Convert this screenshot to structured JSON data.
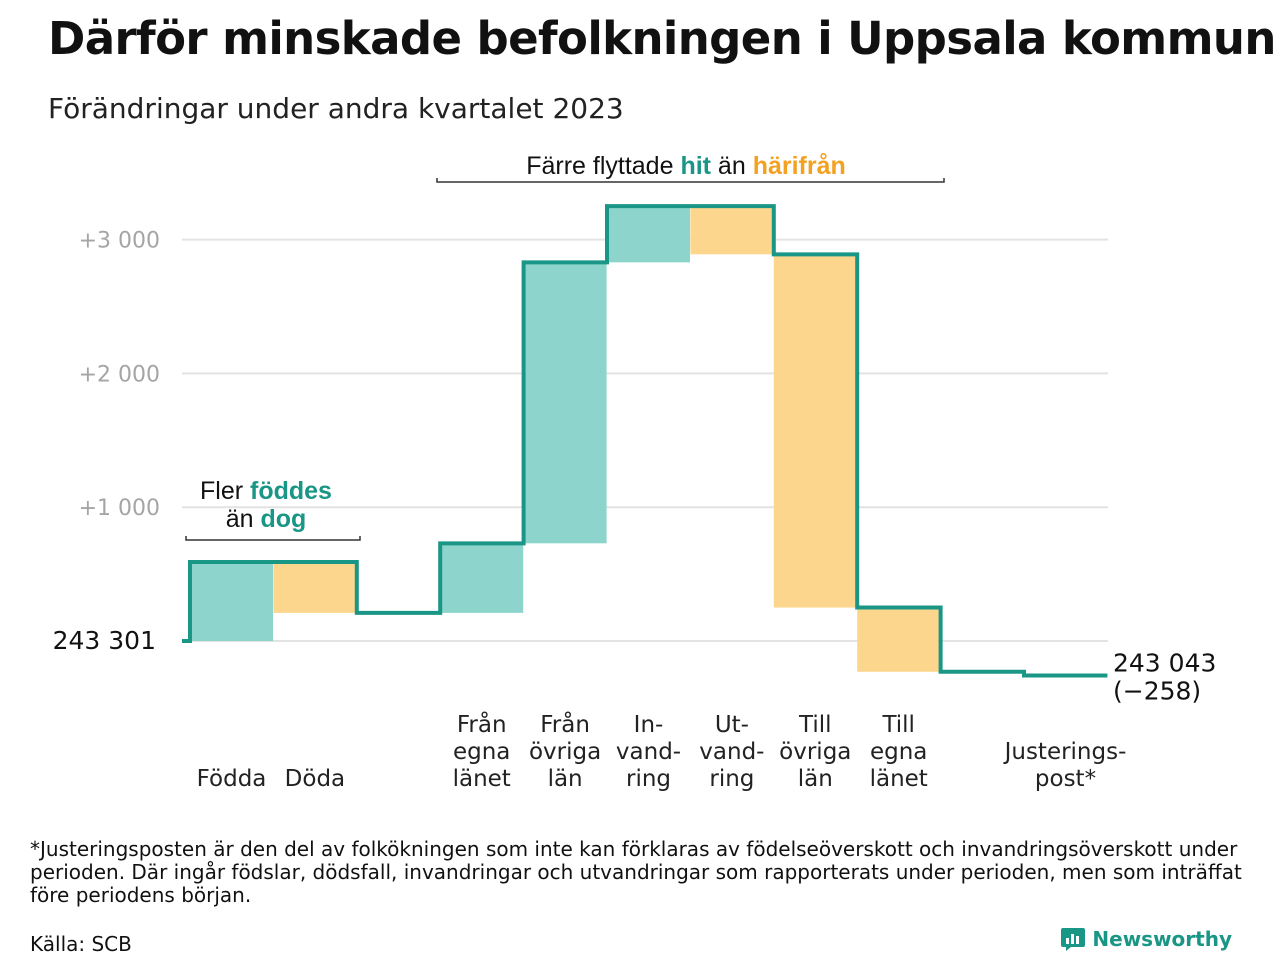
{
  "title": "Därför minskade befolkningen i Uppsala kommun",
  "subtitle": "Förändringar under andra kvartalet 2023",
  "footnote": "*Justeringsposten är den del av folkökningen som inte kan förklaras av födelseöverskott och invandringsöverskott under perioden. Där ingår födslar, dödsfall, invandringar och utvandringar som rapporterats under perioden, men som inträffat före periodens början.",
  "source": "Källa: SCB",
  "brand": "Newsworthy",
  "colors": {
    "increase": "#8dd5cc",
    "decrease": "#fcd68c",
    "line": "#1a9686",
    "increase_text": "#1a9686",
    "decrease_text": "#f3a122"
  },
  "chart_data": {
    "type": "waterfall",
    "start_value": 243301,
    "start_label": "243   301",
    "end_value": 243043,
    "end_label": "243 043",
    "end_change_label": "(−258)",
    "ylim": [
      -350,
      3350
    ],
    "yticks": [
      {
        "value": 1000,
        "label": "+1   000"
      },
      {
        "value": 2000,
        "label": "+2   000"
      },
      {
        "value": 3000,
        "label": "+3   000"
      }
    ],
    "steps": [
      {
        "label": [
          "Födda"
        ],
        "change": 590,
        "kind": "increase"
      },
      {
        "label": [
          "Döda"
        ],
        "change": -380,
        "kind": "decrease"
      },
      {
        "label": [
          ""
        ],
        "change": 0,
        "kind": "gap"
      },
      {
        "label": [
          "Från",
          "egna",
          "länet"
        ],
        "change": 520,
        "kind": "increase"
      },
      {
        "label": [
          "Från",
          "övriga",
          "län"
        ],
        "change": 2100,
        "kind": "increase"
      },
      {
        "label": [
          "In-",
          "vand-",
          "ring"
        ],
        "change": 420,
        "kind": "increase"
      },
      {
        "label": [
          "Ut-",
          "vand-",
          "ring"
        ],
        "change": -360,
        "kind": "decrease"
      },
      {
        "label": [
          "Till",
          "övriga",
          "län"
        ],
        "change": -2640,
        "kind": "decrease"
      },
      {
        "label": [
          "Till",
          "egna",
          "länet"
        ],
        "change": -480,
        "kind": "decrease"
      },
      {
        "label": [
          ""
        ],
        "change": 0,
        "kind": "gap"
      },
      {
        "label": [
          "Justerings-",
          "post*"
        ],
        "change": -28,
        "kind": "adjust"
      }
    ],
    "annotations": [
      {
        "lines": [
          [
            "Fler ",
            "föddes"
          ],
          [
            "än ",
            "dog"
          ]
        ]
      },
      {
        "lines": [
          [
            "Färre flyttade ",
            "hit",
            " än ",
            "härifrån"
          ]
        ]
      }
    ]
  }
}
